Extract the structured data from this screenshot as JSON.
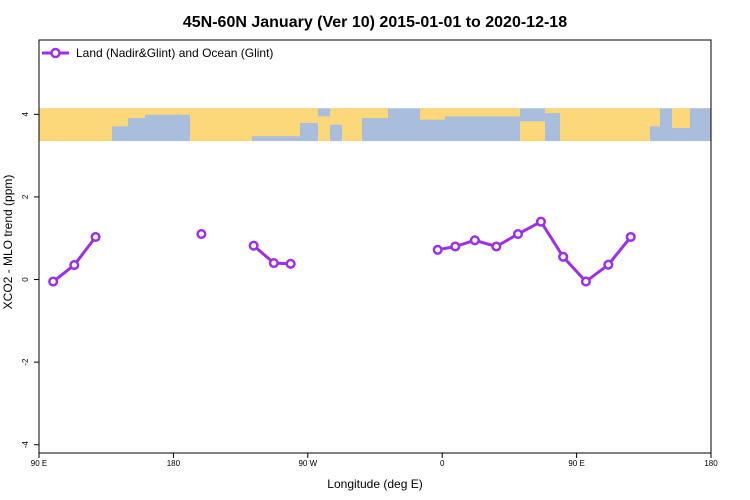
{
  "chart_data": {
    "type": "line",
    "title": "45N-60N January (Ver 10)   2015-01-01 to 2020-12-18",
    "xlabel": "Longitude (deg E)",
    "ylabel": "XCO2 - MLO trend (ppm)",
    "xlim": [
      90,
      450
    ],
    "ylim": [
      -4.2,
      5.8
    ],
    "x_ticks": [
      {
        "value": 90,
        "label": "90 E"
      },
      {
        "value": 162,
        "label": "180"
      },
      {
        "value": 234,
        "label": "90 W"
      },
      {
        "value": 306,
        "label": "0"
      },
      {
        "value": 378,
        "label": "90 E"
      },
      {
        "value": 450,
        "label": "180"
      }
    ],
    "y_ticks": [
      {
        "value": -4,
        "label": "-4"
      },
      {
        "value": -2,
        "label": "-2"
      },
      {
        "value": 0,
        "label": "0"
      },
      {
        "value": 2,
        "label": "2"
      },
      {
        "value": 4,
        "label": "4"
      }
    ],
    "grid": false,
    "legend_position": "top-left",
    "map_band": {
      "ymin": 3.35,
      "ymax": 4.15,
      "ocean_color": "#a9bedd",
      "land_color": "#fdd87a"
    },
    "series": [
      {
        "name": "Land (Nadir&Glint) and Ocean (Glint)",
        "color": "#9b30e6",
        "segments": [
          [
            [
              97.6,
              -0.05
            ],
            [
              108.9,
              0.35
            ],
            [
              120.3,
              1.03
            ]
          ],
          [
            [
              177.0,
              1.1
            ]
          ],
          [
            [
              205.0,
              0.82
            ],
            [
              215.8,
              0.4
            ],
            [
              224.8,
              0.38
            ]
          ],
          [
            [
              303.6,
              0.72
            ],
            [
              313.0,
              0.8
            ],
            [
              323.5,
              0.95
            ],
            [
              335.0,
              0.8
            ],
            [
              346.6,
              1.1
            ],
            [
              358.9,
              1.4
            ],
            [
              370.8,
              0.55
            ],
            [
              383.0,
              -0.05
            ],
            [
              395.0,
              0.36
            ],
            [
              407.0,
              1.03
            ]
          ]
        ]
      }
    ]
  }
}
